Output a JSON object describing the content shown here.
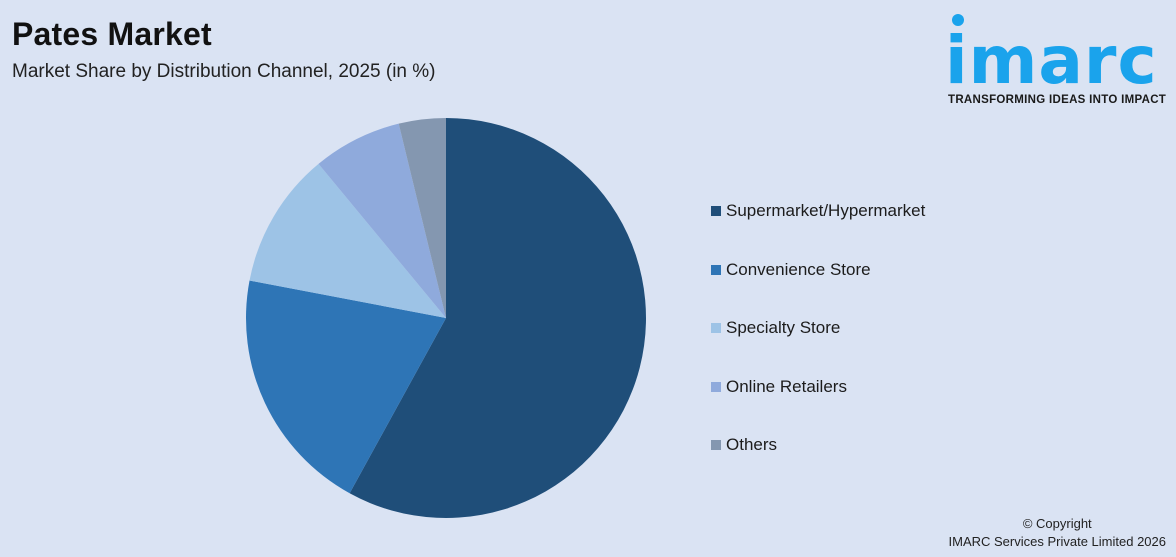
{
  "header": {
    "title": "Pates Market",
    "subtitle": "Market Share by Distribution Channel, 2025 (in %)"
  },
  "logo": {
    "word": "imarc",
    "tagline": "TRANSFORMING IDEAS INTO IMPACT",
    "color": "#1aa3ec"
  },
  "legend": {
    "items": [
      {
        "label": "Supermarket/Hypermarket",
        "color": "#1f4e79"
      },
      {
        "label": "Convenience Store",
        "color": "#2e75b6"
      },
      {
        "label": "Specialty Store",
        "color": "#9dc3e6"
      },
      {
        "label": "Online Retailers",
        "color": "#8faadc"
      },
      {
        "label": "Others",
        "color": "#8497b0"
      }
    ]
  },
  "footer": {
    "line1": "© Copyright",
    "line2": "IMARC Services Private Limited 2026"
  },
  "chart_data": {
    "type": "pie",
    "title": "Pates Market",
    "subtitle": "Market Share by Distribution Channel, 2025 (in %)",
    "categories": [
      "Supermarket/Hypermarket",
      "Convenience Store",
      "Specialty Store",
      "Online Retailers",
      "Others"
    ],
    "values": [
      58,
      20,
      11,
      7.2,
      3.8
    ],
    "colors": [
      "#1f4e79",
      "#2e75b6",
      "#9dc3e6",
      "#8faadc",
      "#8497b0"
    ],
    "start_angle": "12 o'clock, clockwise",
    "legend_position": "right",
    "data_labels": false
  }
}
